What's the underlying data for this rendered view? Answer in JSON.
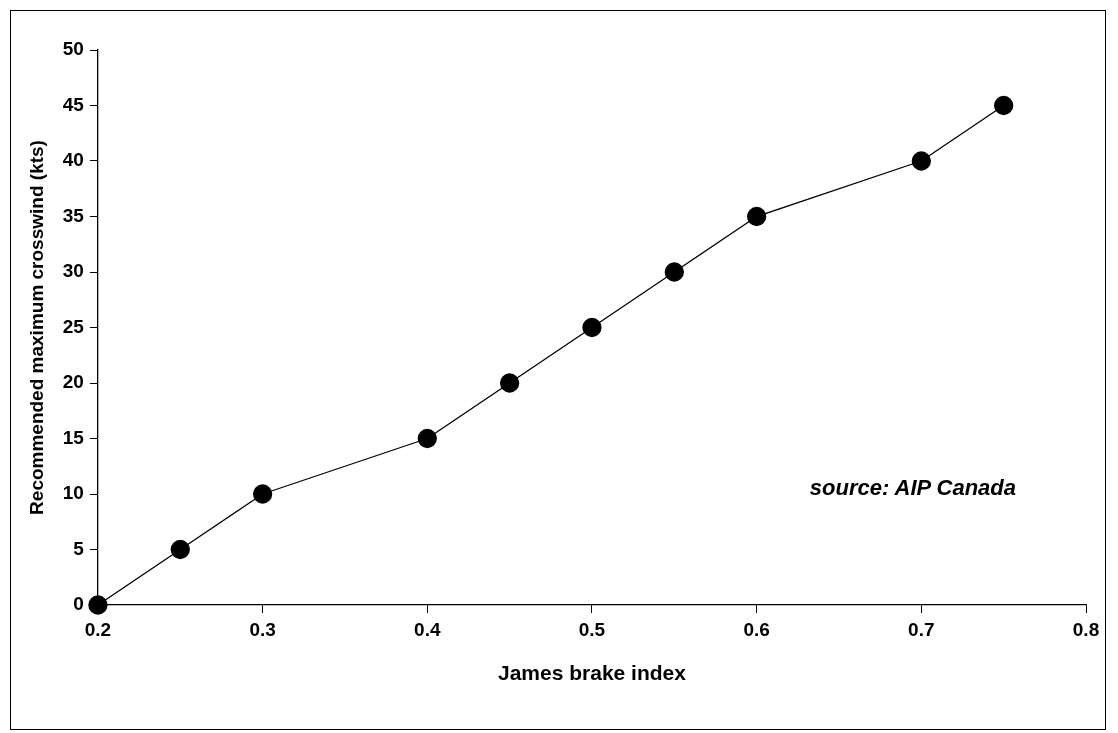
{
  "chart_data": {
    "type": "line",
    "xlabel": "James brake index",
    "ylabel": "Recommended maximum crosswind (kts)",
    "x": [
      0.2,
      0.25,
      0.3,
      0.4,
      0.45,
      0.5,
      0.55,
      0.6,
      0.7,
      0.75
    ],
    "series": [
      {
        "color": "#000000",
        "values": [
          0,
          5,
          10,
          15,
          20,
          25,
          30,
          35,
          40,
          45
        ]
      }
    ],
    "xlim": [
      0.2,
      0.8
    ],
    "xticks": [
      0.2,
      0.3,
      0.4,
      0.5,
      0.6,
      0.7,
      0.8
    ],
    "ylim": [
      0,
      50
    ],
    "yticks": [
      0,
      5,
      10,
      15,
      20,
      25,
      30,
      35,
      40,
      45,
      50
    ],
    "grid": false,
    "legend": false,
    "marker": "circle",
    "line_style": "solid",
    "annotations": [
      "source: AIP Canada"
    ]
  }
}
